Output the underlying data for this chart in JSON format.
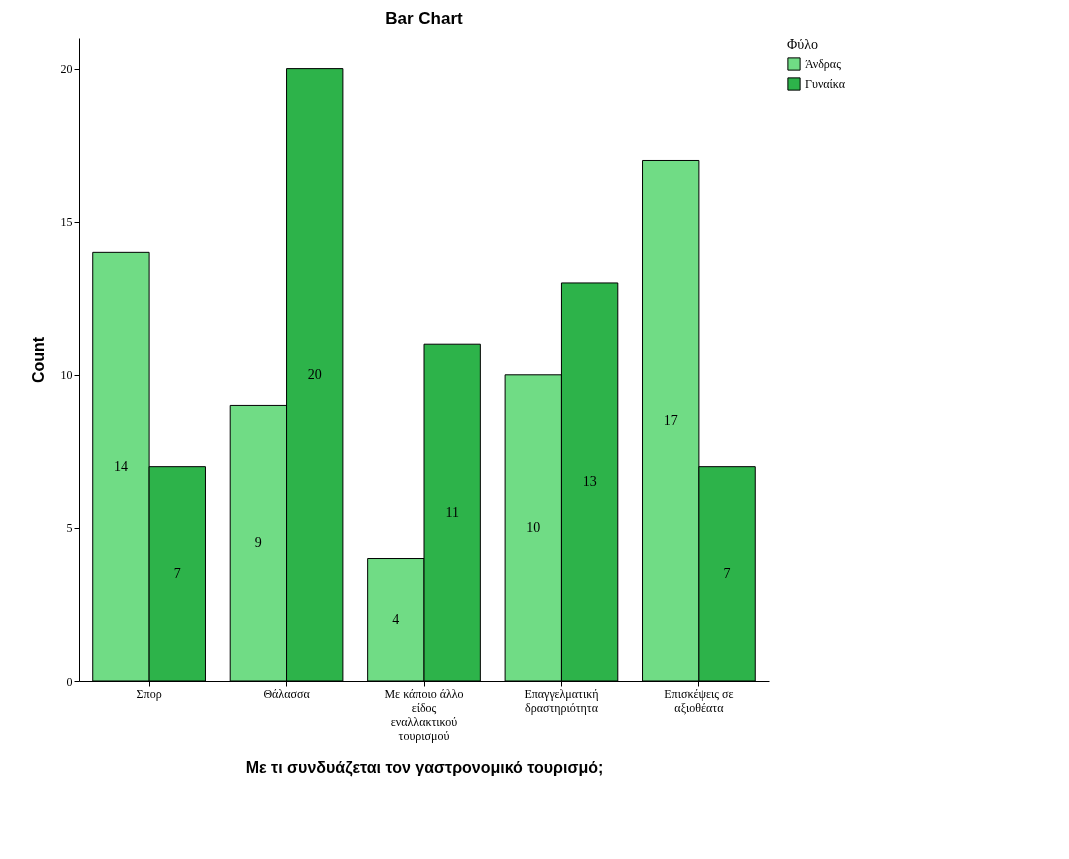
{
  "chart_data": {
    "type": "bar",
    "title": "Bar Chart",
    "xlabel": "Με τι συνδυάζεται τον γαστρονομικό τουρισμό;",
    "ylabel": "Count",
    "legend_title": "Φύλο",
    "legend": "top right",
    "data_labels": true,
    "grid": false,
    "categories": [
      "Σπορ",
      "Θάλασσα",
      "Με κάποιο άλλο είδος εναλλακτικού τουρισμού",
      "Επαγγελματική δραστηριότητα",
      "Επισκέψεις σε αξιοθέατα"
    ],
    "series": [
      {
        "name": "Άνδρας",
        "color": "#70dc85",
        "values": [
          14,
          9,
          4,
          10,
          17
        ]
      },
      {
        "name": "Γυναίκα",
        "color": "#2db34a",
        "values": [
          7,
          20,
          11,
          13,
          7
        ]
      }
    ],
    "ylim": [
      0,
      21
    ],
    "yticks": [
      0,
      5,
      10,
      15,
      20
    ]
  }
}
